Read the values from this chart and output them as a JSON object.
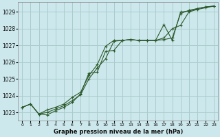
{
  "title": "Graphe pression niveau de la mer (hPa)",
  "bg_color": "#cce8ec",
  "grid_color": "#aacccc",
  "line_color": "#2d5a2d",
  "xlim": [
    -0.5,
    23.5
  ],
  "ylim": [
    1022.5,
    1029.6
  ],
  "yticks": [
    1023,
    1024,
    1025,
    1026,
    1027,
    1028,
    1029
  ],
  "xticks": [
    0,
    1,
    2,
    3,
    4,
    5,
    6,
    7,
    8,
    9,
    10,
    11,
    12,
    13,
    14,
    15,
    16,
    17,
    18,
    19,
    20,
    21,
    22,
    23
  ],
  "series": [
    [
      1023.3,
      1023.5,
      1022.9,
      1022.85,
      1023.1,
      1023.3,
      1023.6,
      1024.1,
      1025.35,
      1025.4,
      1026.65,
      1026.7,
      1027.3,
      1027.35,
      1027.3,
      1027.3,
      1027.3,
      1027.35,
      1027.45,
      1028.9,
      1029.1,
      1029.2,
      1029.3,
      1029.35
    ],
    [
      1023.3,
      1023.5,
      1022.9,
      1023.0,
      1023.2,
      1023.4,
      1023.7,
      1024.05,
      1025.0,
      1025.65,
      1026.2,
      1027.25,
      1027.3,
      1027.35,
      1027.3,
      1027.3,
      1027.3,
      1027.45,
      1028.0,
      1028.2,
      1029.0,
      1029.15,
      1029.25,
      1029.35
    ],
    [
      1023.3,
      1023.5,
      1022.9,
      1023.15,
      1023.3,
      1023.5,
      1023.9,
      1024.2,
      1025.2,
      1025.85,
      1026.95,
      1027.3,
      1027.3,
      1027.35,
      1027.3,
      1027.3,
      1027.3,
      1028.25,
      1027.3,
      1029.0,
      1029.05,
      1029.2,
      1029.3,
      1029.35
    ]
  ]
}
